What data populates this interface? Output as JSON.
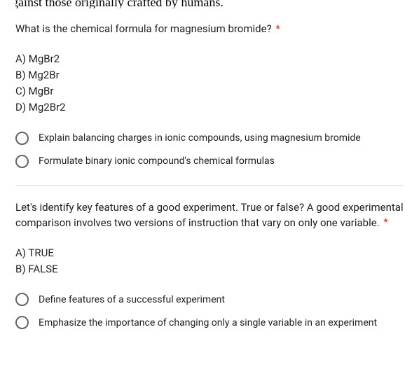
{
  "fragment_top": "gainst those originally crafted by humans.",
  "q1": {
    "text": "What is the chemical formula for magnesium bromide?",
    "required_mark": "*",
    "options": [
      "A) MgBr2",
      "B) Mg2Br",
      "C) MgBr",
      "D) Mg2Br2"
    ],
    "radios": [
      "Explain balancing charges in ionic compounds, using magnesium bromide",
      "Formulate binary ionic compound's chemical formulas"
    ]
  },
  "q2": {
    "text": "Let's identify key features of a good experiment. True or false? A good experimental comparison involves two versions of instruction that vary on only one variable.",
    "required_mark": "*",
    "options": [
      "A) TRUE",
      "B) FALSE"
    ],
    "radios": [
      "Define features of a successful experiment",
      "Emphasize the importance of changing only a single variable in an experiment"
    ]
  },
  "colors": {
    "text": "#202124",
    "required": "#d93025",
    "radio_border": "#5f6368",
    "divider": "#dadce0",
    "background": "#ffffff"
  }
}
